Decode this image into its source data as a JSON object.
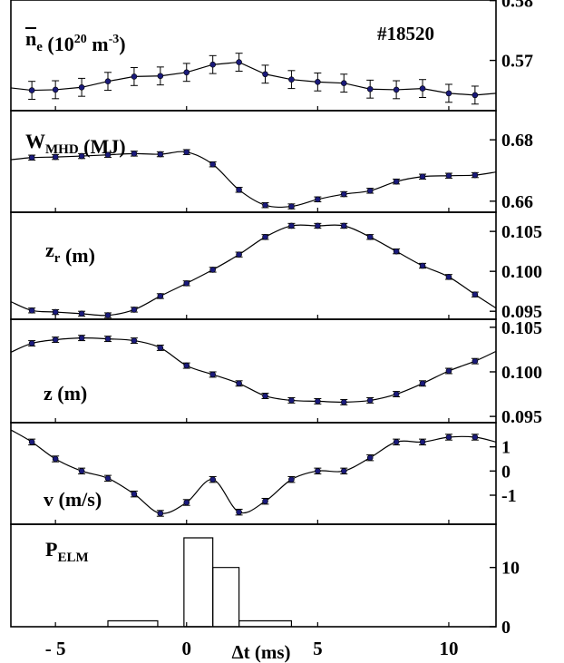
{
  "shot_label": "#18520",
  "xaxis": {
    "label": "Δt (ms)",
    "ticks": [
      -5,
      0,
      5,
      10
    ],
    "tick_labels": [
      "- 5",
      "0",
      "5",
      "10"
    ],
    "xlim": [
      -6.7,
      11.8
    ]
  },
  "colors": {
    "line": "#000000",
    "marker": "#1a1a7a",
    "errorbar": "#000000"
  },
  "chart_data": [
    {
      "type": "line",
      "id": "ne",
      "label": {
        "main": "n",
        "sub": "e",
        "unit": "(10",
        "exp": "20",
        "unit2": " m",
        "exp2": "-3",
        "close": ")"
      },
      "ylim": [
        0.5616,
        0.5801
      ],
      "yticks": [
        0.57,
        0.58
      ],
      "ytick_labels": [
        "0.57",
        "0.58"
      ],
      "x": [
        -5.9,
        -5,
        -4,
        -3,
        -2,
        -1,
        0,
        1,
        2,
        3,
        4,
        5,
        6,
        7,
        8,
        9,
        10,
        11
      ],
      "y": [
        0.565,
        0.5651,
        0.5655,
        0.5665,
        0.5673,
        0.5674,
        0.568,
        0.5693,
        0.5697,
        0.5677,
        0.5668,
        0.5664,
        0.5662,
        0.5652,
        0.5651,
        0.5653,
        0.5645,
        0.5642
      ],
      "yerr": 0.0015,
      "curve_x": [
        -6.7,
        11.8
      ],
      "curve_y": [
        0.5654,
        0.5645
      ]
    },
    {
      "type": "line",
      "id": "wmhd",
      "label": {
        "main": "W",
        "sub": "MHD",
        "unit": " (MJ)"
      },
      "ylim": [
        0.6564,
        0.6895
      ],
      "yticks": [
        0.66,
        0.68
      ],
      "ytick_labels": [
        "0.66",
        "0.68"
      ],
      "x": [
        -5.9,
        -5,
        -4,
        -3,
        -2,
        -1,
        0,
        1,
        2,
        3,
        4,
        5,
        6,
        7,
        8,
        9,
        10,
        11
      ],
      "y": [
        0.6742,
        0.6744,
        0.6747,
        0.6751,
        0.6755,
        0.6753,
        0.676,
        0.672,
        0.6637,
        0.6587,
        0.6583,
        0.6606,
        0.6623,
        0.6634,
        0.6664,
        0.668,
        0.6683,
        0.6685
      ],
      "yerr": 0.0008,
      "curve_x": [
        -6.7,
        11.8
      ],
      "curve_y": [
        0.6735,
        0.6695
      ]
    },
    {
      "type": "line",
      "id": "zr",
      "label": {
        "main": "z",
        "sub": "r",
        "unit": "(m)"
      },
      "ylim": [
        0.094,
        0.1074
      ],
      "yticks": [
        0.095,
        0.1,
        0.105
      ],
      "ytick_labels": [
        "0.095",
        "0.100",
        "0.105"
      ],
      "x": [
        -5.9,
        -5,
        -4,
        -3,
        -2,
        -1,
        0,
        1,
        2,
        3,
        4,
        5,
        6,
        7,
        8,
        9,
        10,
        11
      ],
      "y": [
        0.0951,
        0.0949,
        0.0947,
        0.0945,
        0.0952,
        0.0969,
        0.0985,
        0.1002,
        0.1021,
        0.1043,
        0.1057,
        0.1057,
        0.1057,
        0.1043,
        0.1025,
        0.1007,
        0.0993,
        0.0971
      ],
      "yerr": 0.0003,
      "curve_x": [
        -6.7,
        11.8
      ],
      "curve_y": [
        0.0962,
        0.0954
      ]
    },
    {
      "type": "line",
      "id": "z",
      "label": {
        "main": "z",
        "sub": "",
        "unit": "  (m)"
      },
      "ylim": [
        0.0943,
        0.1059
      ],
      "yticks": [
        0.095,
        0.1,
        0.105
      ],
      "ytick_labels": [
        "0.095",
        "0.100",
        "0.105"
      ],
      "x": [
        -5.9,
        -5,
        -4,
        -3,
        -2,
        -1,
        0,
        1,
        2,
        3,
        4,
        5,
        6,
        7,
        8,
        9,
        10,
        11
      ],
      "y": [
        0.1032,
        0.1036,
        0.1038,
        0.1037,
        0.1035,
        0.1027,
        0.1007,
        0.0997,
        0.0987,
        0.0973,
        0.0968,
        0.0967,
        0.0966,
        0.0968,
        0.0975,
        0.0987,
        0.1001,
        0.1012
      ],
      "yerr": 0.0003,
      "curve_x": [
        -6.7,
        11.8
      ],
      "curve_y": [
        0.1022,
        0.1023
      ]
    },
    {
      "type": "line",
      "id": "v",
      "label": {
        "main": "v",
        "sub": "",
        "unit": " (m/s)"
      },
      "ylim": [
        -2.2,
        2.0
      ],
      "yticks": [
        -1,
        0,
        1
      ],
      "ytick_labels": [
        "-1",
        "0",
        "1"
      ],
      "x": [
        -5.9,
        -5,
        -4,
        -3,
        -2,
        -1,
        0,
        1,
        2,
        3,
        4,
        5,
        6,
        7,
        8,
        9,
        10,
        11
      ],
      "y": [
        1.2,
        0.5,
        0.0,
        -0.3,
        -0.95,
        -1.75,
        -1.3,
        -0.35,
        -1.7,
        -1.25,
        -0.35,
        0.0,
        0.0,
        0.55,
        1.2,
        1.2,
        1.4,
        1.4
      ],
      "yerr": 0.12,
      "curve_x": [
        -6.7,
        11.8
      ],
      "curve_y": [
        1.7,
        1.2
      ]
    },
    {
      "type": "bar",
      "id": "pelm",
      "label": {
        "main": "P",
        "sub": "ELM",
        "unit": ""
      },
      "ylim": [
        0,
        17.3
      ],
      "yticks": [
        0,
        10
      ],
      "ytick_labels": [
        "0",
        "10"
      ],
      "steps": [
        {
          "x0": -3,
          "x1": -1.1,
          "v": 1
        },
        {
          "x0": -0.1,
          "x1": 0.9,
          "v": 0
        },
        {
          "x0": -0.1,
          "x1": 1.0,
          "v": 15
        },
        {
          "x0": 1.0,
          "x1": 2.0,
          "v": 10
        },
        {
          "x0": 2.0,
          "x1": 4.0,
          "v": 1
        }
      ]
    }
  ]
}
